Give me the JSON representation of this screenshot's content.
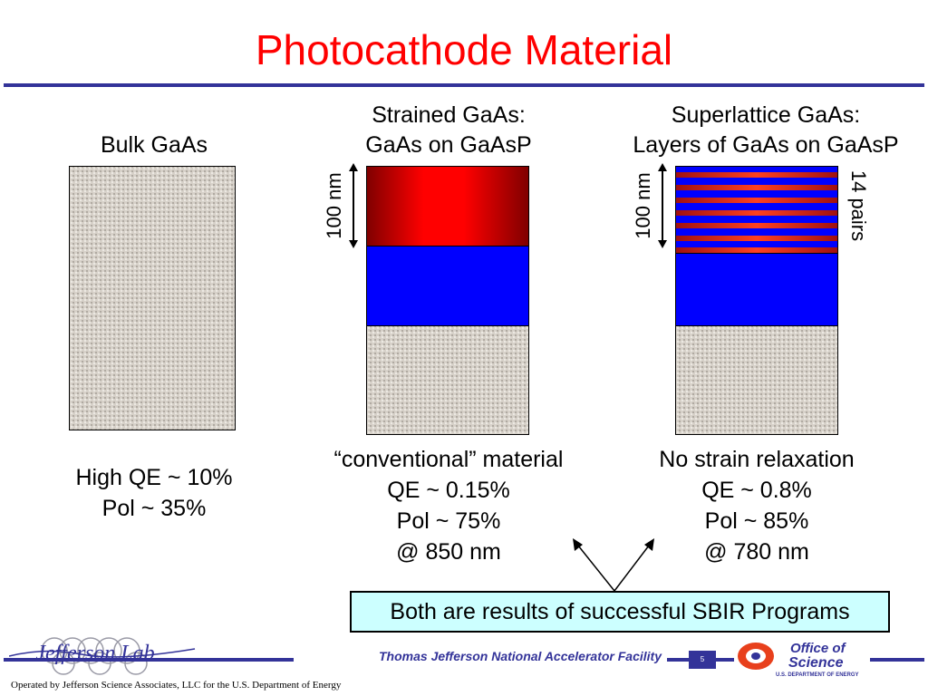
{
  "slide": {
    "title": "Photocathode Material",
    "page_number": "5",
    "footer_lab": "Thomas Jefferson National Accelerator Facility",
    "operated_by": "Operated by Jefferson Science Associates, LLC  for the U.S. Department of Energy"
  },
  "columns": [
    {
      "heading_lines": [
        "Bulk GaAs"
      ],
      "text_lines": [
        "High QE ~ 10%",
        "Pol ~ 35%"
      ]
    },
    {
      "heading_lines": [
        "Strained GaAs:",
        "GaAs on GaAsP"
      ],
      "thickness_label": "100 nm",
      "text_lines": [
        "“conventional” material",
        "QE ~ 0.15%",
        "Pol ~ 75%",
        "@ 850 nm"
      ]
    },
    {
      "heading_lines": [
        "Superlattice GaAs:",
        "Layers of GaAs on GaAsP"
      ],
      "thickness_label": "100 nm",
      "pairs_label": "14 pairs",
      "text_lines": [
        "No strain relaxation",
        "QE ~ 0.8%",
        "Pol ~ 85%",
        "@ 780 nm"
      ]
    }
  ],
  "callout": "Both are results of successful SBIR Programs",
  "logos": {
    "jlab": "Jefferson Lab",
    "doe_line1": "Office of",
    "doe_line2": "Science",
    "doe_line3": "U.S. DEPARTMENT OF ENERGY"
  },
  "colors": {
    "title": "#ff0000",
    "rule": "#333399",
    "layer_blue": "#0000ff",
    "layer_red": "#ff0000",
    "callout_bg": "#ccffff"
  }
}
